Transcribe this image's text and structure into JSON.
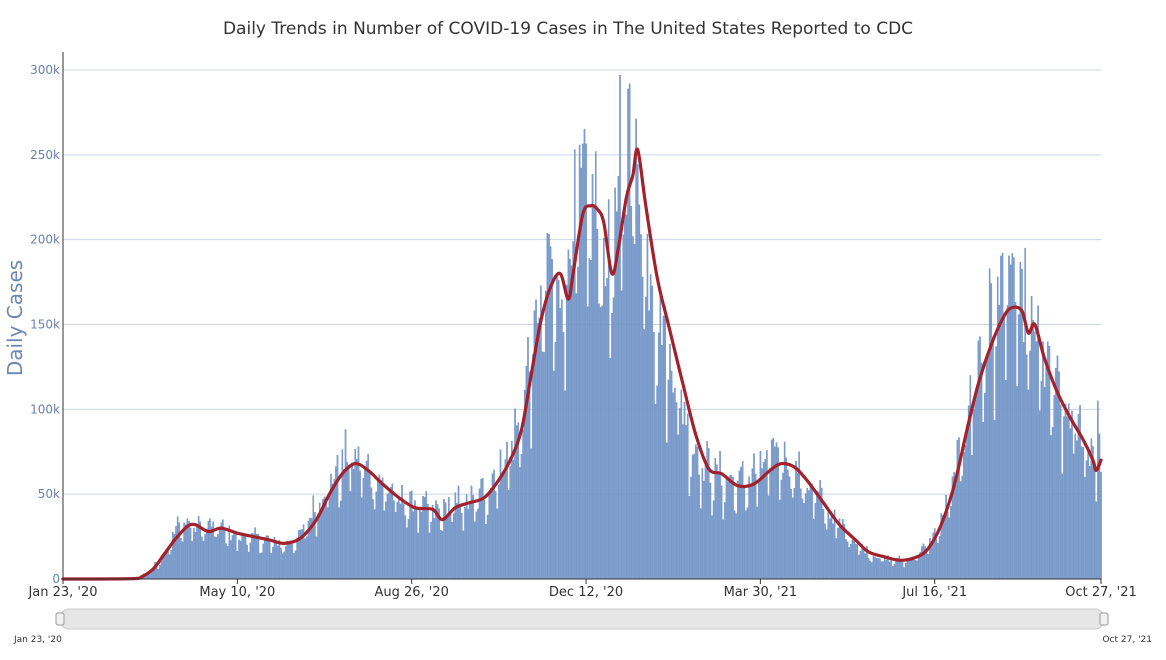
{
  "chart_data": {
    "type": "bar",
    "title": "Daily Trends in Number of COVID-19 Cases in The United States Reported to CDC",
    "ylabel": "Daily Cases",
    "xlabel": "",
    "ylim": [
      0,
      300000
    ],
    "y_ticks": [
      {
        "value": 0,
        "label": "0"
      },
      {
        "value": 50000,
        "label": "50k"
      },
      {
        "value": 100000,
        "label": "100k"
      },
      {
        "value": 150000,
        "label": "150k"
      },
      {
        "value": 200000,
        "label": "200k"
      },
      {
        "value": 250000,
        "label": "250k"
      },
      {
        "value": 300000,
        "label": "300k"
      }
    ],
    "x_range": [
      "2020-01-23",
      "2021-10-27"
    ],
    "x_ticks": [
      {
        "date": "2020-01-23",
        "label": "Jan 23, '20"
      },
      {
        "date": "2020-05-10",
        "label": "May 10, '20"
      },
      {
        "date": "2020-08-26",
        "label": "Aug 26, '20"
      },
      {
        "date": "2020-12-12",
        "label": "Dec 12, '20"
      },
      {
        "date": "2021-03-30",
        "label": "Mar 30, '21"
      },
      {
        "date": "2021-07-16",
        "label": "Jul 16, '21"
      },
      {
        "date": "2021-10-27",
        "label": "Oct 27, '21"
      }
    ],
    "grid": true,
    "legend": "none",
    "series": [
      {
        "kind": "bar",
        "color": "#7b9ccc",
        "points": [
          [
            "2020-01-23",
            0
          ],
          [
            "2020-03-01",
            100
          ],
          [
            "2020-03-10",
            1000
          ],
          [
            "2020-03-17",
            5000
          ],
          [
            "2020-03-24",
            12000
          ],
          [
            "2020-03-31",
            25000
          ],
          [
            "2020-04-04",
            32000
          ],
          [
            "2020-04-10",
            33000
          ],
          [
            "2020-04-16",
            30000
          ],
          [
            "2020-04-24",
            31000
          ],
          [
            "2020-05-03",
            28000
          ],
          [
            "2020-05-10",
            25000
          ],
          [
            "2020-05-20",
            24000
          ],
          [
            "2020-05-30",
            22000
          ],
          [
            "2020-06-08",
            20000
          ],
          [
            "2020-06-18",
            25000
          ],
          [
            "2020-06-26",
            40000
          ],
          [
            "2020-07-03",
            52000
          ],
          [
            "2020-07-10",
            62000
          ],
          [
            "2020-07-18",
            72000
          ],
          [
            "2020-07-24",
            70000
          ],
          [
            "2020-08-01",
            62000
          ],
          [
            "2020-08-10",
            54000
          ],
          [
            "2020-08-20",
            45000
          ],
          [
            "2020-08-30",
            44000
          ],
          [
            "2020-09-08",
            38000
          ],
          [
            "2020-09-15",
            41000
          ],
          [
            "2020-09-25",
            45000
          ],
          [
            "2020-10-05",
            45000
          ],
          [
            "2020-10-15",
            58000
          ],
          [
            "2020-10-25",
            75000
          ],
          [
            "2020-11-01",
            90000
          ],
          [
            "2020-11-06",
            120000
          ],
          [
            "2020-11-13",
            160000
          ],
          [
            "2020-11-20",
            180000
          ],
          [
            "2020-11-26",
            160000
          ],
          [
            "2020-12-04",
            215000
          ],
          [
            "2020-12-10",
            220000
          ],
          [
            "2020-12-17",
            215000
          ],
          [
            "2020-12-24",
            185000
          ],
          [
            "2020-12-30",
            200000
          ],
          [
            "2021-01-05",
            230000
          ],
          [
            "2021-01-09",
            265000
          ],
          [
            "2021-01-15",
            215000
          ],
          [
            "2021-01-22",
            175000
          ],
          [
            "2021-01-30",
            140000
          ],
          [
            "2021-02-08",
            110000
          ],
          [
            "2021-02-15",
            80000
          ],
          [
            "2021-02-25",
            65000
          ],
          [
            "2021-03-08",
            58000
          ],
          [
            "2021-03-18",
            56000
          ],
          [
            "2021-03-28",
            63000
          ],
          [
            "2021-04-08",
            72000
          ],
          [
            "2021-04-15",
            72000
          ],
          [
            "2021-04-25",
            58000
          ],
          [
            "2021-05-05",
            48000
          ],
          [
            "2021-05-15",
            35000
          ],
          [
            "2021-05-25",
            25000
          ],
          [
            "2021-06-05",
            15000
          ],
          [
            "2021-06-18",
            11000
          ],
          [
            "2021-06-28",
            11000
          ],
          [
            "2021-07-08",
            16000
          ],
          [
            "2021-07-16",
            25000
          ],
          [
            "2021-07-25",
            45000
          ],
          [
            "2021-08-01",
            75000
          ],
          [
            "2021-08-08",
            110000
          ],
          [
            "2021-08-15",
            135000
          ],
          [
            "2021-08-22",
            155000
          ],
          [
            "2021-08-28",
            168000
          ],
          [
            "2021-09-04",
            165000
          ],
          [
            "2021-09-10",
            155000
          ],
          [
            "2021-09-18",
            138000
          ],
          [
            "2021-09-25",
            118000
          ],
          [
            "2021-10-02",
            102000
          ],
          [
            "2021-10-10",
            92000
          ],
          [
            "2021-10-18",
            82000
          ],
          [
            "2021-10-23",
            72000
          ],
          [
            "2021-10-27",
            75000
          ]
        ],
        "peaks": [
          [
            "2020-04-10",
            34000
          ],
          [
            "2020-07-24",
            78000
          ],
          [
            "2020-11-20",
            196000
          ],
          [
            "2020-12-18",
            252000
          ],
          [
            "2021-01-02",
            297000
          ],
          [
            "2021-01-08",
            292000
          ],
          [
            "2021-04-08",
            78000
          ],
          [
            "2021-08-27",
            192000
          ],
          [
            "2021-09-02",
            192000
          ],
          [
            "2021-10-25",
            105000
          ]
        ]
      },
      {
        "kind": "line",
        "color": "#a3212b",
        "points": [
          [
            "2020-01-23",
            0
          ],
          [
            "2020-03-05",
            200
          ],
          [
            "2020-03-12",
            1500
          ],
          [
            "2020-03-19",
            6000
          ],
          [
            "2020-03-26",
            15000
          ],
          [
            "2020-04-02",
            24000
          ],
          [
            "2020-04-09",
            31000
          ],
          [
            "2020-04-14",
            32000
          ],
          [
            "2020-04-22",
            28000
          ],
          [
            "2020-04-30",
            30000
          ],
          [
            "2020-05-10",
            27000
          ],
          [
            "2020-05-20",
            25000
          ],
          [
            "2020-05-30",
            23000
          ],
          [
            "2020-06-08",
            21000
          ],
          [
            "2020-06-18",
            24000
          ],
          [
            "2020-06-28",
            35000
          ],
          [
            "2020-07-06",
            50000
          ],
          [
            "2020-07-14",
            62000
          ],
          [
            "2020-07-22",
            68000
          ],
          [
            "2020-07-30",
            64000
          ],
          [
            "2020-08-08",
            56000
          ],
          [
            "2020-08-18",
            48000
          ],
          [
            "2020-08-28",
            42000
          ],
          [
            "2020-09-08",
            41000
          ],
          [
            "2020-09-14",
            35000
          ],
          [
            "2020-09-22",
            42000
          ],
          [
            "2020-10-01",
            45000
          ],
          [
            "2020-10-10",
            48000
          ],
          [
            "2020-10-18",
            57000
          ],
          [
            "2020-10-26",
            70000
          ],
          [
            "2020-11-02",
            88000
          ],
          [
            "2020-11-08",
            120000
          ],
          [
            "2020-11-14",
            152000
          ],
          [
            "2020-11-20",
            172000
          ],
          [
            "2020-11-26",
            180000
          ],
          [
            "2020-12-01",
            165000
          ],
          [
            "2020-12-04",
            180000
          ],
          [
            "2020-12-10",
            215000
          ],
          [
            "2020-12-15",
            220000
          ],
          [
            "2020-12-19",
            218000
          ],
          [
            "2020-12-23",
            210000
          ],
          [
            "2020-12-28",
            180000
          ],
          [
            "2021-01-01",
            195000
          ],
          [
            "2021-01-06",
            225000
          ],
          [
            "2021-01-10",
            238000
          ],
          [
            "2021-01-13",
            253000
          ],
          [
            "2021-01-18",
            220000
          ],
          [
            "2021-01-25",
            178000
          ],
          [
            "2021-02-01",
            150000
          ],
          [
            "2021-02-10",
            115000
          ],
          [
            "2021-02-18",
            85000
          ],
          [
            "2021-02-26",
            65000
          ],
          [
            "2021-03-06",
            62000
          ],
          [
            "2021-03-16",
            55000
          ],
          [
            "2021-03-26",
            56000
          ],
          [
            "2021-04-05",
            64000
          ],
          [
            "2021-04-12",
            68000
          ],
          [
            "2021-04-20",
            66000
          ],
          [
            "2021-04-28",
            58000
          ],
          [
            "2021-05-08",
            45000
          ],
          [
            "2021-05-18",
            32000
          ],
          [
            "2021-05-28",
            23000
          ],
          [
            "2021-06-05",
            16000
          ],
          [
            "2021-06-15",
            13000
          ],
          [
            "2021-06-25",
            11000
          ],
          [
            "2021-07-05",
            13000
          ],
          [
            "2021-07-12",
            18000
          ],
          [
            "2021-07-20",
            32000
          ],
          [
            "2021-07-28",
            55000
          ],
          [
            "2021-08-05",
            88000
          ],
          [
            "2021-08-12",
            115000
          ],
          [
            "2021-08-20",
            138000
          ],
          [
            "2021-08-28",
            155000
          ],
          [
            "2021-09-02",
            160000
          ],
          [
            "2021-09-08",
            158000
          ],
          [
            "2021-09-12",
            145000
          ],
          [
            "2021-09-16",
            150000
          ],
          [
            "2021-09-22",
            130000
          ],
          [
            "2021-09-30",
            110000
          ],
          [
            "2021-10-08",
            95000
          ],
          [
            "2021-10-16",
            82000
          ],
          [
            "2021-10-22",
            70000
          ],
          [
            "2021-10-24",
            64000
          ],
          [
            "2021-10-27",
            70000
          ]
        ]
      }
    ]
  },
  "navigator": {
    "start_label": "Jan 23, '20",
    "end_label": "Oct 27, '21"
  },
  "colors": {
    "bars": "#7b9ccc",
    "average_line": "#a3212b",
    "gridlines": "#c9d5e6",
    "y_labels": "#6b7fae"
  }
}
